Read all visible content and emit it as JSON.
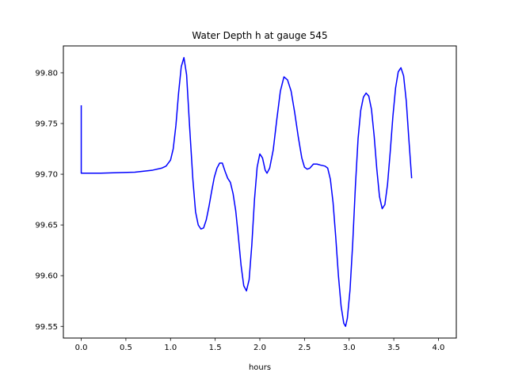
{
  "chart_data": {
    "type": "line",
    "title": "Water Depth h at gauge 545",
    "xlabel": "hours",
    "ylabel": "",
    "xlim": [
      -0.2,
      4.2
    ],
    "ylim": [
      99.5385,
      99.8265
    ],
    "xticks": [
      "0.0",
      "0.5",
      "1.0",
      "1.5",
      "2.0",
      "2.5",
      "3.0",
      "3.5",
      "4.0"
    ],
    "yticks": [
      "99.55",
      "99.60",
      "99.65",
      "99.70",
      "99.75",
      "99.80"
    ],
    "grid": false,
    "series": [
      {
        "color": "#0000ff",
        "points": [
          [
            0.0,
            99.768
          ],
          [
            0.0,
            99.701
          ],
          [
            0.2,
            99.701
          ],
          [
            0.4,
            99.7015
          ],
          [
            0.6,
            99.702
          ],
          [
            0.8,
            99.704
          ],
          [
            0.9,
            99.706
          ],
          [
            0.95,
            99.708
          ],
          [
            1.0,
            99.714
          ],
          [
            1.03,
            99.725
          ],
          [
            1.06,
            99.748
          ],
          [
            1.09,
            99.78
          ],
          [
            1.12,
            99.806
          ],
          [
            1.15,
            99.815
          ],
          [
            1.18,
            99.798
          ],
          [
            1.21,
            99.752
          ],
          [
            1.25,
            99.695
          ],
          [
            1.28,
            99.663
          ],
          [
            1.31,
            99.65
          ],
          [
            1.34,
            99.646
          ],
          [
            1.37,
            99.647
          ],
          [
            1.4,
            99.655
          ],
          [
            1.43,
            99.668
          ],
          [
            1.46,
            99.683
          ],
          [
            1.49,
            99.697
          ],
          [
            1.52,
            99.706
          ],
          [
            1.55,
            99.711
          ],
          [
            1.58,
            99.711
          ],
          [
            1.61,
            99.703
          ],
          [
            1.64,
            99.696
          ],
          [
            1.67,
            99.692
          ],
          [
            1.7,
            99.681
          ],
          [
            1.73,
            99.664
          ],
          [
            1.76,
            99.638
          ],
          [
            1.79,
            99.61
          ],
          [
            1.82,
            99.59
          ],
          [
            1.85,
            99.585
          ],
          [
            1.88,
            99.596
          ],
          [
            1.91,
            99.63
          ],
          [
            1.94,
            99.675
          ],
          [
            1.97,
            99.707
          ],
          [
            2.0,
            99.72
          ],
          [
            2.03,
            99.716
          ],
          [
            2.06,
            99.704
          ],
          [
            2.08,
            99.701
          ],
          [
            2.11,
            99.706
          ],
          [
            2.15,
            99.724
          ],
          [
            2.19,
            99.754
          ],
          [
            2.23,
            99.782
          ],
          [
            2.27,
            99.796
          ],
          [
            2.31,
            99.793
          ],
          [
            2.35,
            99.782
          ],
          [
            2.39,
            99.761
          ],
          [
            2.43,
            99.737
          ],
          [
            2.47,
            99.716
          ],
          [
            2.5,
            99.707
          ],
          [
            2.53,
            99.705
          ],
          [
            2.56,
            99.706
          ],
          [
            2.6,
            99.71
          ],
          [
            2.64,
            99.71
          ],
          [
            2.68,
            99.709
          ],
          [
            2.73,
            99.708
          ],
          [
            2.76,
            99.706
          ],
          [
            2.79,
            99.695
          ],
          [
            2.82,
            99.672
          ],
          [
            2.85,
            99.638
          ],
          [
            2.88,
            99.6
          ],
          [
            2.91,
            99.57
          ],
          [
            2.94,
            99.553
          ],
          [
            2.96,
            99.55
          ],
          [
            2.98,
            99.558
          ],
          [
            3.01,
            99.586
          ],
          [
            3.04,
            99.632
          ],
          [
            3.07,
            99.688
          ],
          [
            3.1,
            99.735
          ],
          [
            3.13,
            99.763
          ],
          [
            3.16,
            99.776
          ],
          [
            3.19,
            99.78
          ],
          [
            3.22,
            99.777
          ],
          [
            3.25,
            99.764
          ],
          [
            3.28,
            99.738
          ],
          [
            3.31,
            99.705
          ],
          [
            3.34,
            99.678
          ],
          [
            3.37,
            99.666
          ],
          [
            3.4,
            99.67
          ],
          [
            3.43,
            99.69
          ],
          [
            3.46,
            99.722
          ],
          [
            3.49,
            99.757
          ],
          [
            3.52,
            99.785
          ],
          [
            3.55,
            99.801
          ],
          [
            3.58,
            99.805
          ],
          [
            3.61,
            99.797
          ],
          [
            3.64,
            99.772
          ],
          [
            3.67,
            99.733
          ],
          [
            3.7,
            99.696
          ]
        ]
      }
    ]
  }
}
